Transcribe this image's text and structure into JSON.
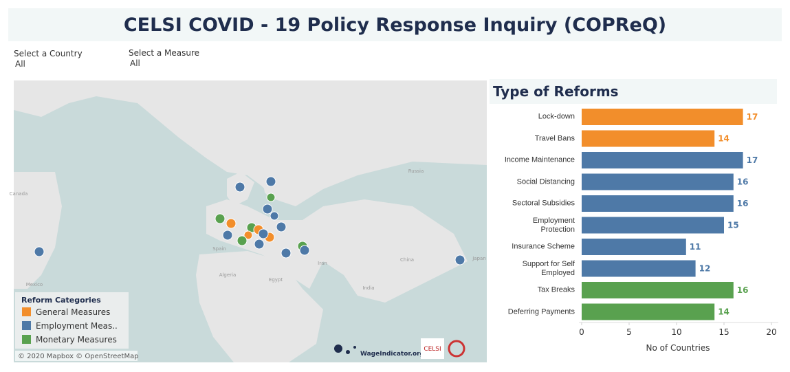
{
  "header": {
    "title": "CELSI COVID - 19 Policy Response Inquiry (COPReQ)"
  },
  "filters": [
    {
      "label": "Select a Country",
      "value": "All"
    },
    {
      "label": "Select a Measure",
      "value": "All"
    }
  ],
  "map": {
    "place_labels": [
      "Russia",
      "China",
      "Iran",
      "India",
      "Egypt",
      "Algeria",
      "Spain",
      "Japan",
      "Mexico",
      "Canada"
    ],
    "legend": {
      "title": "Reform Categories",
      "items": [
        {
          "name": "General Measures",
          "color": "#f28e2b"
        },
        {
          "name": "Employment Meas..",
          "color": "#4e79a7"
        },
        {
          "name": "Monetary Measures",
          "color": "#59a14f"
        }
      ]
    },
    "attribution": "© 2020 Mapbox © OpenStreetMap",
    "logos": [
      "WageIndicator.org",
      "CELSI"
    ]
  },
  "chart_data": {
    "type": "bar",
    "orientation": "horizontal",
    "title": "Type of Reforms",
    "categories": [
      "Lock-down",
      "Travel Bans",
      "Income Maintenance",
      "Social Distancing",
      "Sectoral Subsidies",
      "Employment Protection",
      "Insurance Scheme",
      "Support for Self Employed",
      "Tax Breaks",
      "Deferring Payments"
    ],
    "values": [
      17,
      14,
      17,
      16,
      16,
      15,
      11,
      12,
      16,
      14
    ],
    "colors": [
      "#f28e2b",
      "#f28e2b",
      "#4e79a7",
      "#4e79a7",
      "#4e79a7",
      "#4e79a7",
      "#4e79a7",
      "#4e79a7",
      "#59a14f",
      "#59a14f"
    ],
    "xlim": [
      0,
      20
    ],
    "xticks": [
      0,
      5,
      10,
      15,
      20
    ],
    "xlabel": "No of Countries"
  }
}
